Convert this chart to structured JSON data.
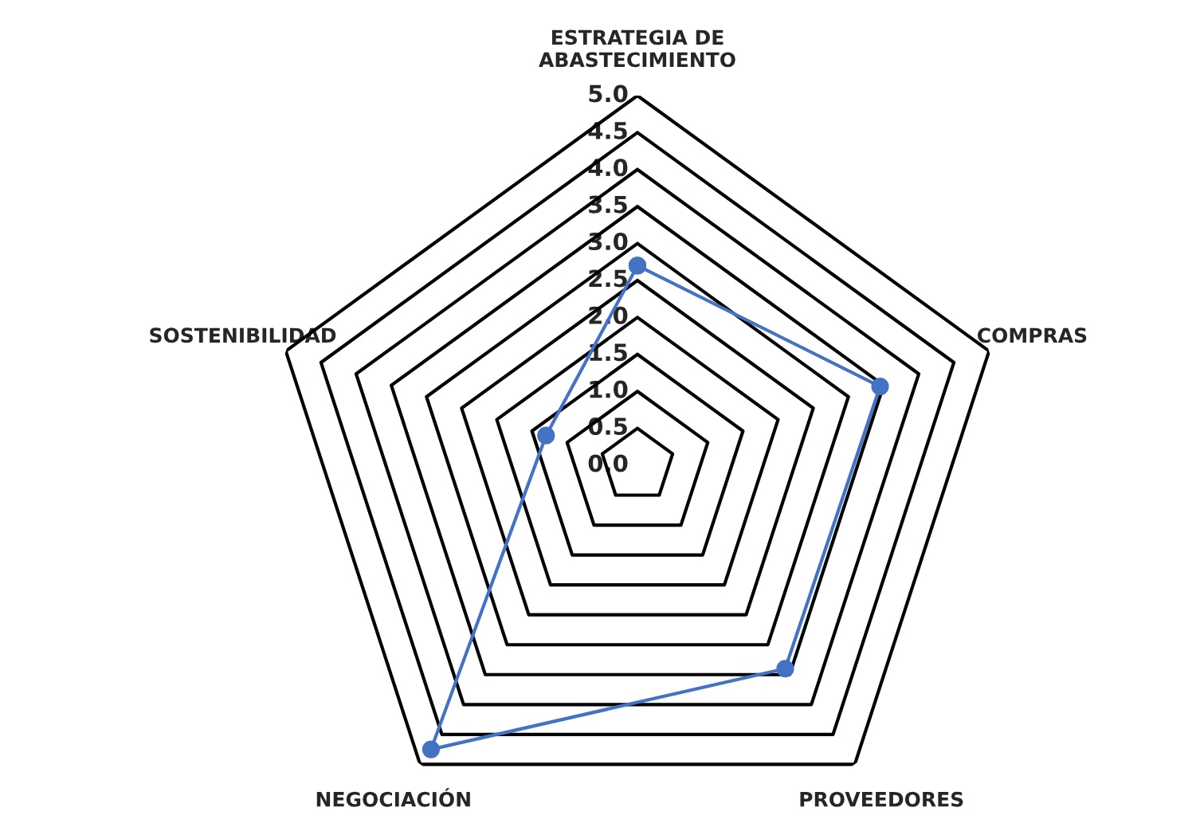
{
  "chart_data": {
    "type": "radar",
    "categories": [
      "ESTRATEGIA DE\nABASTECIMIENTO",
      "COMPRAS",
      "PROVEEDORES",
      "NEGOCIACIÓN",
      "SOSTENIBILIDAD"
    ],
    "series": [
      {
        "color": "#4472c4",
        "values": [
          2.7,
          3.45,
          3.4,
          4.75,
          1.3
        ]
      }
    ],
    "ylim": [
      0,
      5
    ],
    "yticks": [
      {
        "value": 0,
        "label": "0.0"
      },
      {
        "value": 0.5,
        "label": "0.5"
      },
      {
        "value": 1,
        "label": "1.0"
      },
      {
        "value": 1.5,
        "label": "1.5"
      },
      {
        "value": 2,
        "label": "2.0"
      },
      {
        "value": 2.5,
        "label": "2.5"
      },
      {
        "value": 3,
        "label": "3.0"
      },
      {
        "value": 3.5,
        "label": "3.5"
      },
      {
        "value": 4,
        "label": "4.0"
      },
      {
        "value": 4.5,
        "label": "4.5"
      },
      {
        "value": 5,
        "label": "5.0"
      }
    ],
    "grid": true,
    "marker": "circle",
    "line_style": "solid"
  }
}
